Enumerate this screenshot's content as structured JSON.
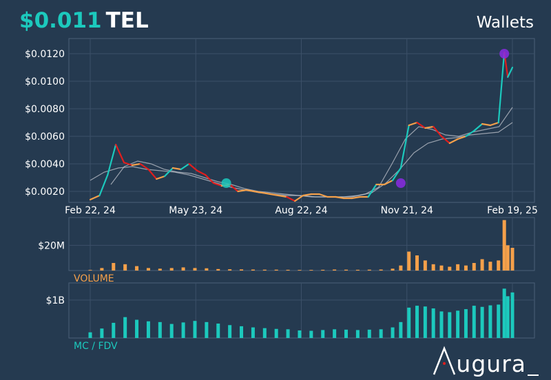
{
  "header": {
    "price": "$0.011",
    "symbol": "TEL",
    "wallets_label": "Wallets"
  },
  "logo": {
    "text": "ugura"
  },
  "colors": {
    "background": "#253a50",
    "up": "#1cc9bd",
    "neutral": "#f5a04a",
    "down": "#e01e1e",
    "volume": "#f5a04a",
    "mc": "#1cc9bd",
    "marker_purple": "#8a2be2",
    "ma": "#c0c4cc"
  },
  "chart_data": [
    {
      "type": "line",
      "title": "",
      "ylabel": "",
      "ylim": [
        0.0012,
        0.0131
      ],
      "y_ticks": [
        "$0.0020",
        "$0.0040",
        "$0.0060",
        "$0.0080",
        "$0.0100",
        "$0.0120"
      ],
      "y_tick_values": [
        0.002,
        0.004,
        0.006,
        0.008,
        0.01,
        0.012
      ],
      "x_ticks": [
        "Feb 22, 24",
        "May 23, 24",
        "Aug 22, 24",
        "Nov 21, 24",
        "Feb 19, 25"
      ],
      "x_range": [
        "2024-02-22",
        "2025-02-19"
      ],
      "series": [
        {
          "x": [
            "2024-02-22",
            "2024-03-01",
            "2024-03-08",
            "2024-03-15",
            "2024-03-22",
            "2024-03-29",
            "2024-04-05",
            "2024-04-12",
            "2024-04-19",
            "2024-04-26",
            "2024-05-03",
            "2024-05-10",
            "2024-05-17",
            "2024-05-24",
            "2024-05-31",
            "2024-06-07",
            "2024-06-14",
            "2024-06-21",
            "2024-06-28",
            "2024-07-05",
            "2024-07-12",
            "2024-07-19",
            "2024-07-26",
            "2024-08-02",
            "2024-08-09",
            "2024-08-16",
            "2024-08-23",
            "2024-08-30",
            "2024-09-06",
            "2024-09-13",
            "2024-09-20",
            "2024-09-27",
            "2024-10-04",
            "2024-10-11",
            "2024-10-18",
            "2024-10-25",
            "2024-11-01",
            "2024-11-08",
            "2024-11-15",
            "2024-11-22",
            "2024-11-29",
            "2024-12-06",
            "2024-12-13",
            "2024-12-20",
            "2024-12-27",
            "2025-01-03",
            "2025-01-10",
            "2025-01-17",
            "2025-01-24",
            "2025-01-31",
            "2025-02-07",
            "2025-02-12",
            "2025-02-15",
            "2025-02-19"
          ],
          "values": [
            0.0014,
            0.0017,
            0.0032,
            0.0054,
            0.0041,
            0.0039,
            0.004,
            0.0036,
            0.0029,
            0.0031,
            0.0037,
            0.0036,
            0.004,
            0.0035,
            0.0032,
            0.0026,
            0.0024,
            0.0025,
            0.002,
            0.0021,
            0.002,
            0.0019,
            0.0018,
            0.0017,
            0.0016,
            0.0013,
            0.0017,
            0.0018,
            0.0018,
            0.0016,
            0.0016,
            0.0015,
            0.0015,
            0.0016,
            0.0016,
            0.0025,
            0.0025,
            0.0028,
            0.0037,
            0.0068,
            0.007,
            0.0066,
            0.0067,
            0.006,
            0.0055,
            0.0058,
            0.006,
            0.0064,
            0.0069,
            0.0068,
            0.007,
            0.0121,
            0.0103,
            0.011
          ]
        },
        {
          "name": "",
          "values": [
            0.0025,
            0.0038,
            0.0042,
            0.004,
            0.0036,
            0.0034,
            0.0033,
            0.003,
            0.0027,
            0.0025,
            0.0022,
            0.002,
            0.0019,
            0.0018,
            0.0017,
            0.0016,
            0.0016,
            0.0016,
            0.0016,
            0.0018,
            0.0023,
            0.004,
            0.0058,
            0.0067,
            0.0065,
            0.0061,
            0.006,
            0.0063,
            0.0065,
            0.0067,
            0.0081
          ]
        },
        {
          "name": "",
          "values": [
            0.0028,
            0.0034,
            0.0037,
            0.0038,
            0.0036,
            0.0035,
            0.0034,
            0.0032,
            0.0029,
            0.0026,
            0.0023,
            0.0021,
            0.0019,
            0.0018,
            0.0017,
            0.0017,
            0.0016,
            0.0016,
            0.0016,
            0.0017,
            0.0019,
            0.0026,
            0.0036,
            0.0048,
            0.0055,
            0.0058,
            0.0059,
            0.0061,
            0.0062,
            0.0063,
            0.007
          ]
        }
      ],
      "markers": [
        {
          "x": "2024-06-18",
          "y": 0.0026,
          "color": "#1cc9bd"
        },
        {
          "x": "2024-11-15",
          "y": 0.0026,
          "color": "#8a2be2"
        },
        {
          "x": "2025-02-12",
          "y": 0.012,
          "color": "#8a2be2"
        }
      ]
    },
    {
      "type": "bar",
      "title": "VOLUME",
      "y_ticks": [
        "$20M"
      ],
      "y_tick_values": [
        20000000
      ],
      "ylim": [
        0,
        42000000
      ],
      "x_range": [
        "2024-02-22",
        "2025-02-19"
      ],
      "x": [
        "2024-02-22",
        "2024-03-03",
        "2024-03-13",
        "2024-03-23",
        "2024-04-02",
        "2024-04-12",
        "2024-04-22",
        "2024-05-02",
        "2024-05-12",
        "2024-05-22",
        "2024-06-01",
        "2024-06-11",
        "2024-06-21",
        "2024-07-01",
        "2024-07-11",
        "2024-07-21",
        "2024-07-31",
        "2024-08-10",
        "2024-08-20",
        "2024-08-30",
        "2024-09-09",
        "2024-09-19",
        "2024-09-29",
        "2024-10-09",
        "2024-10-19",
        "2024-10-29",
        "2024-11-08",
        "2024-11-15",
        "2024-11-22",
        "2024-11-29",
        "2024-12-06",
        "2024-12-13",
        "2024-12-20",
        "2024-12-27",
        "2025-01-03",
        "2025-01-10",
        "2025-01-17",
        "2025-01-24",
        "2025-01-31",
        "2025-02-07",
        "2025-02-12",
        "2025-02-15",
        "2025-02-19"
      ],
      "values": [
        500000,
        2000000,
        6000000,
        5000000,
        3500000,
        2000000,
        1500000,
        2000000,
        2500000,
        2000000,
        1800000,
        1200000,
        1000000,
        900000,
        800000,
        700000,
        700000,
        600000,
        500000,
        500000,
        600000,
        800000,
        700000,
        600000,
        700000,
        800000,
        1500000,
        4000000,
        15000000,
        12000000,
        8000000,
        5000000,
        4000000,
        3000000,
        5000000,
        4000000,
        6000000,
        9000000,
        7000000,
        8000000,
        40000000,
        20000000,
        18000000
      ]
    },
    {
      "type": "bar",
      "title": "MC / FDV",
      "y_ticks": [
        "$1B"
      ],
      "y_tick_values": [
        1000000000
      ],
      "ylim": [
        0,
        1450000000
      ],
      "x_range": [
        "2024-02-22",
        "2025-02-19"
      ],
      "x": [
        "2024-02-22",
        "2024-03-03",
        "2024-03-13",
        "2024-03-23",
        "2024-04-02",
        "2024-04-12",
        "2024-04-22",
        "2024-05-02",
        "2024-05-12",
        "2024-05-22",
        "2024-06-01",
        "2024-06-11",
        "2024-06-21",
        "2024-07-01",
        "2024-07-11",
        "2024-07-21",
        "2024-07-31",
        "2024-08-10",
        "2024-08-20",
        "2024-08-30",
        "2024-09-09",
        "2024-09-19",
        "2024-09-29",
        "2024-10-09",
        "2024-10-19",
        "2024-10-29",
        "2024-11-08",
        "2024-11-15",
        "2024-11-22",
        "2024-11-29",
        "2024-12-06",
        "2024-12-13",
        "2024-12-20",
        "2024-12-27",
        "2025-01-03",
        "2025-01-10",
        "2025-01-17",
        "2025-01-24",
        "2025-01-31",
        "2025-02-07",
        "2025-02-12",
        "2025-02-15",
        "2025-02-19"
      ],
      "values": [
        150000000,
        250000000,
        400000000,
        550000000,
        480000000,
        440000000,
        420000000,
        370000000,
        410000000,
        450000000,
        420000000,
        380000000,
        340000000,
        310000000,
        280000000,
        260000000,
        240000000,
        230000000,
        200000000,
        190000000,
        210000000,
        230000000,
        220000000,
        210000000,
        220000000,
        230000000,
        280000000,
        420000000,
        800000000,
        850000000,
        830000000,
        780000000,
        700000000,
        680000000,
        720000000,
        760000000,
        850000000,
        820000000,
        860000000,
        880000000,
        1300000000,
        1100000000,
        1200000000
      ]
    }
  ]
}
